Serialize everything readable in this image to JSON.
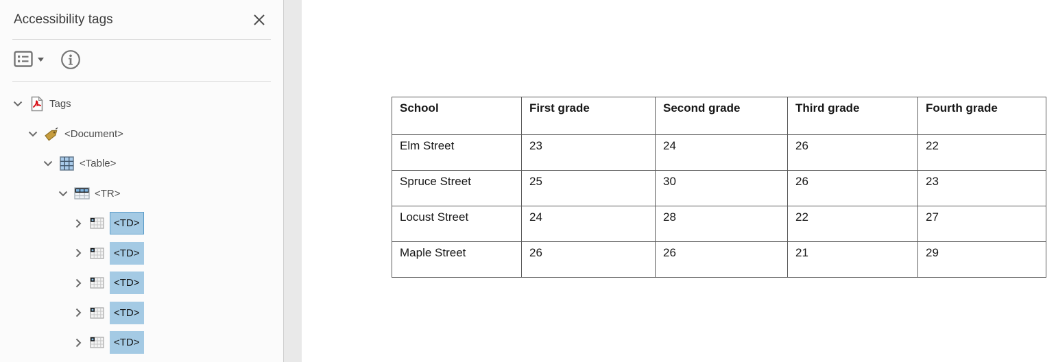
{
  "panel": {
    "title": "Accessibility tags",
    "toolbar": {
      "options_icon": "list-options-icon",
      "dropdown_caret": "caret-down",
      "info_icon": "info-icon"
    },
    "tree": [
      {
        "id": "tags",
        "label": "Tags",
        "icon": "pdf",
        "level": 0,
        "expanded": true,
        "selected": false,
        "focused": false
      },
      {
        "id": "document",
        "label": "<Document>",
        "icon": "tag",
        "level": 1,
        "expanded": true,
        "selected": false,
        "focused": false
      },
      {
        "id": "table",
        "label": "<Table>",
        "icon": "table",
        "level": 2,
        "expanded": true,
        "selected": false,
        "focused": false
      },
      {
        "id": "tr",
        "label": "<TR>",
        "icon": "table-row",
        "level": 3,
        "expanded": true,
        "selected": false,
        "focused": false
      },
      {
        "id": "td-1",
        "label": "<TD>",
        "icon": "table-cell",
        "level": 4,
        "expanded": false,
        "selected": true,
        "focused": true
      },
      {
        "id": "td-2",
        "label": "<TD>",
        "icon": "table-cell",
        "level": 4,
        "expanded": false,
        "selected": true,
        "focused": false
      },
      {
        "id": "td-3",
        "label": "<TD>",
        "icon": "table-cell",
        "level": 4,
        "expanded": false,
        "selected": true,
        "focused": false
      },
      {
        "id": "td-4",
        "label": "<TD>",
        "icon": "table-cell",
        "level": 4,
        "expanded": false,
        "selected": true,
        "focused": false
      },
      {
        "id": "td-5",
        "label": "<TD>",
        "icon": "table-cell",
        "level": 4,
        "expanded": false,
        "selected": true,
        "focused": false
      }
    ]
  },
  "document": {
    "table": {
      "headers": [
        "School",
        "First grade",
        "Second grade",
        "Third grade",
        "Fourth grade"
      ],
      "rows": [
        [
          "Elm Street",
          "23",
          "24",
          "26",
          "22"
        ],
        [
          "Spruce Street",
          "25",
          "30",
          "26",
          "23"
        ],
        [
          "Locust Street",
          "24",
          "28",
          "22",
          "27"
        ],
        [
          "Maple Street",
          "26",
          "26",
          "21",
          "29"
        ]
      ]
    }
  },
  "colors": {
    "selection": "#a4cae4",
    "selection_border": "#5b9cc9",
    "panel_background": "#fbfbfb",
    "strip_background": "#e9e9e9",
    "table_border": "#595959",
    "icon_gray": "#757575",
    "pdf_icon_red": "#d8131a",
    "tag_icon_gold": "#c79d3e"
  }
}
